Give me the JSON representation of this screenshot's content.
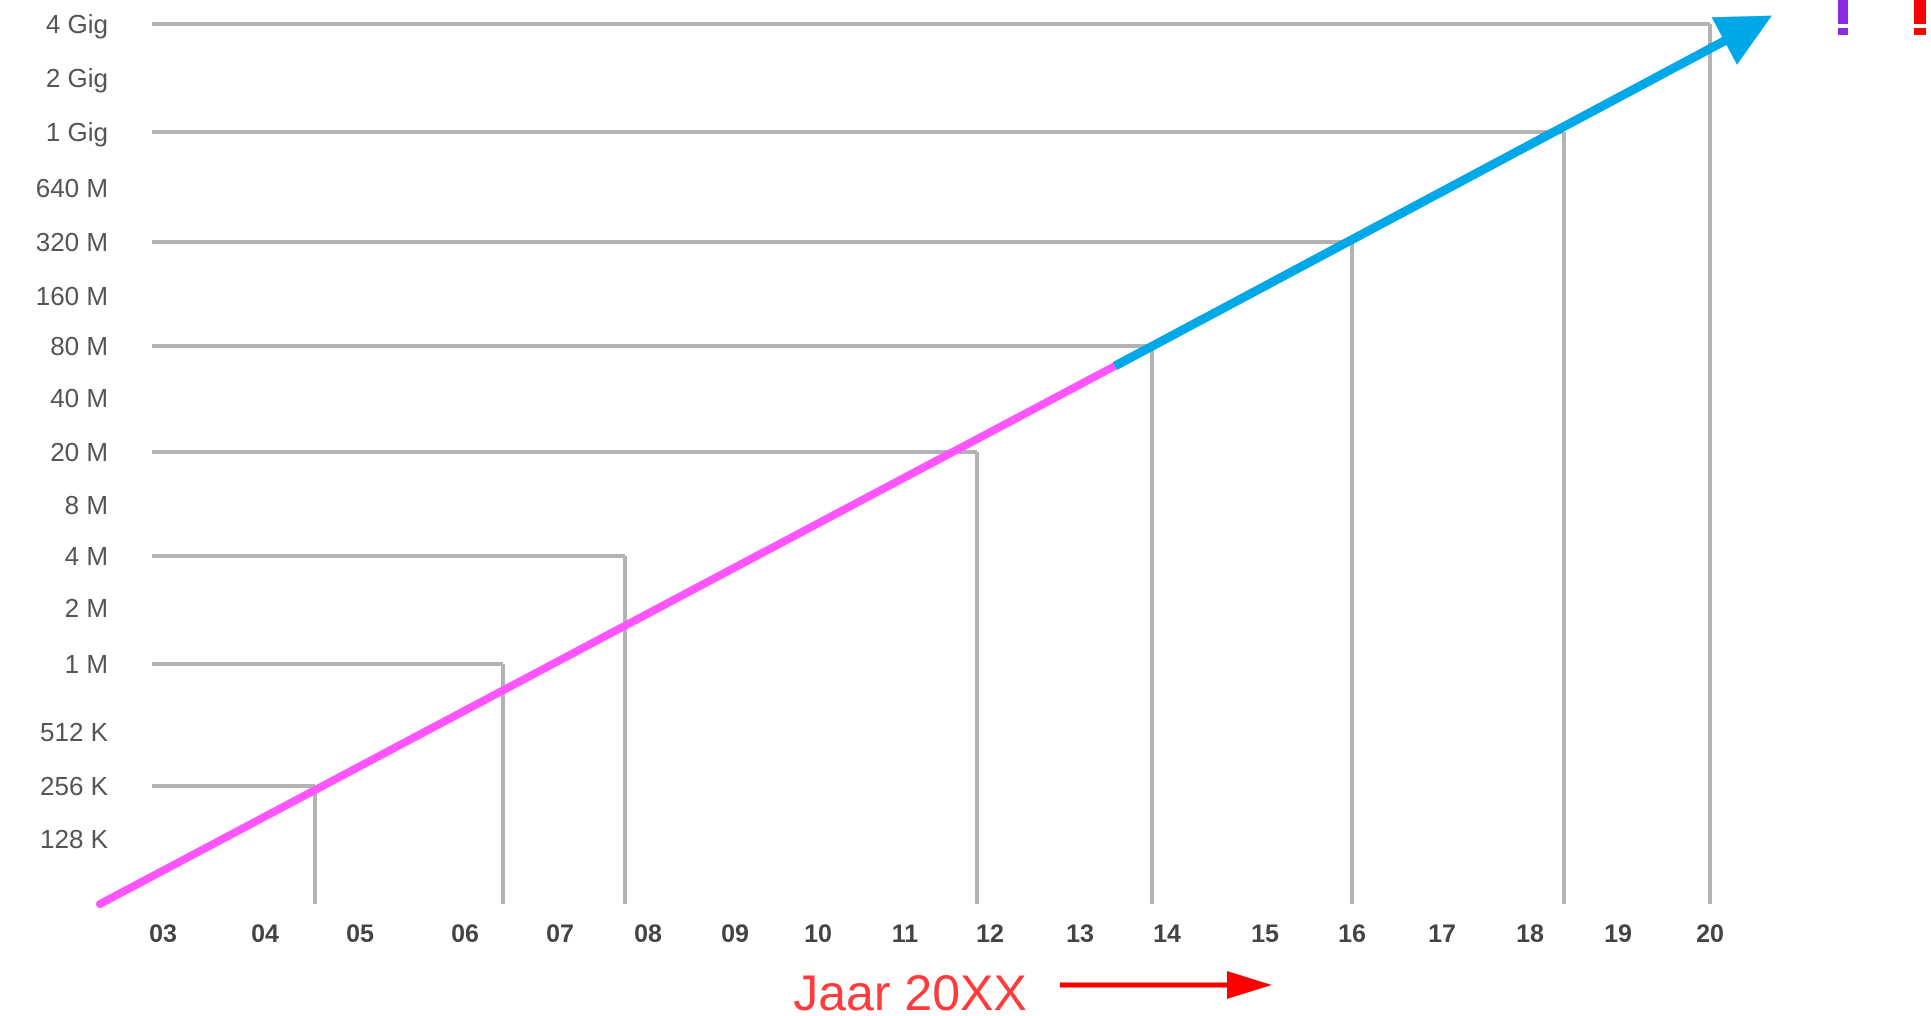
{
  "chart_data": {
    "type": "line",
    "title": "",
    "xlabel": "Jaar 20XX",
    "ylabel": "",
    "y_scale": "log2",
    "x_ticks": [
      "03",
      "04",
      "05",
      "06",
      "07",
      "08",
      "09",
      "10",
      "11",
      "12",
      "13",
      "14",
      "15",
      "16",
      "17",
      "18",
      "19",
      "20"
    ],
    "y_ticks": [
      "4 Gig",
      "2 Gig",
      "1 Gig",
      "640 M",
      "320 M",
      "160 M",
      "80 M",
      "40 M",
      "20 M",
      "8 M",
      "4 M",
      "2 M",
      "1 M",
      "512 K",
      "256 K",
      "128 K"
    ],
    "series": [
      {
        "color": "#ff55ff",
        "x_start": "03",
        "x_end": "13.5",
        "y_start": "",
        "y_end": "40 M"
      },
      {
        "color": "#00a8e8",
        "x_start": "13.5",
        "x_end": "20",
        "y_start": "40 M",
        "y_end": "4 Gig",
        "arrowhead": true
      }
    ],
    "reference_points": [
      {
        "x": "04",
        "y": "256 K"
      },
      {
        "x": "06",
        "y": "1 M"
      },
      {
        "x": "09",
        "y": "4 M"
      },
      {
        "x": "12",
        "y": "20 M"
      },
      {
        "x": "14",
        "y": "80 M"
      },
      {
        "x": "16",
        "y": "320 M"
      },
      {
        "x": "18",
        "y": "1 Gig"
      },
      {
        "x": "20",
        "y": "4 Gig"
      }
    ],
    "grid": false,
    "legend": "none",
    "colors": {
      "gridlines": "#b3b3b3",
      "axis_title": "#ff3b3b",
      "arrow": "#ff0000",
      "mark_purple": "#8a2be2",
      "mark_red": "#ff0000"
    }
  }
}
